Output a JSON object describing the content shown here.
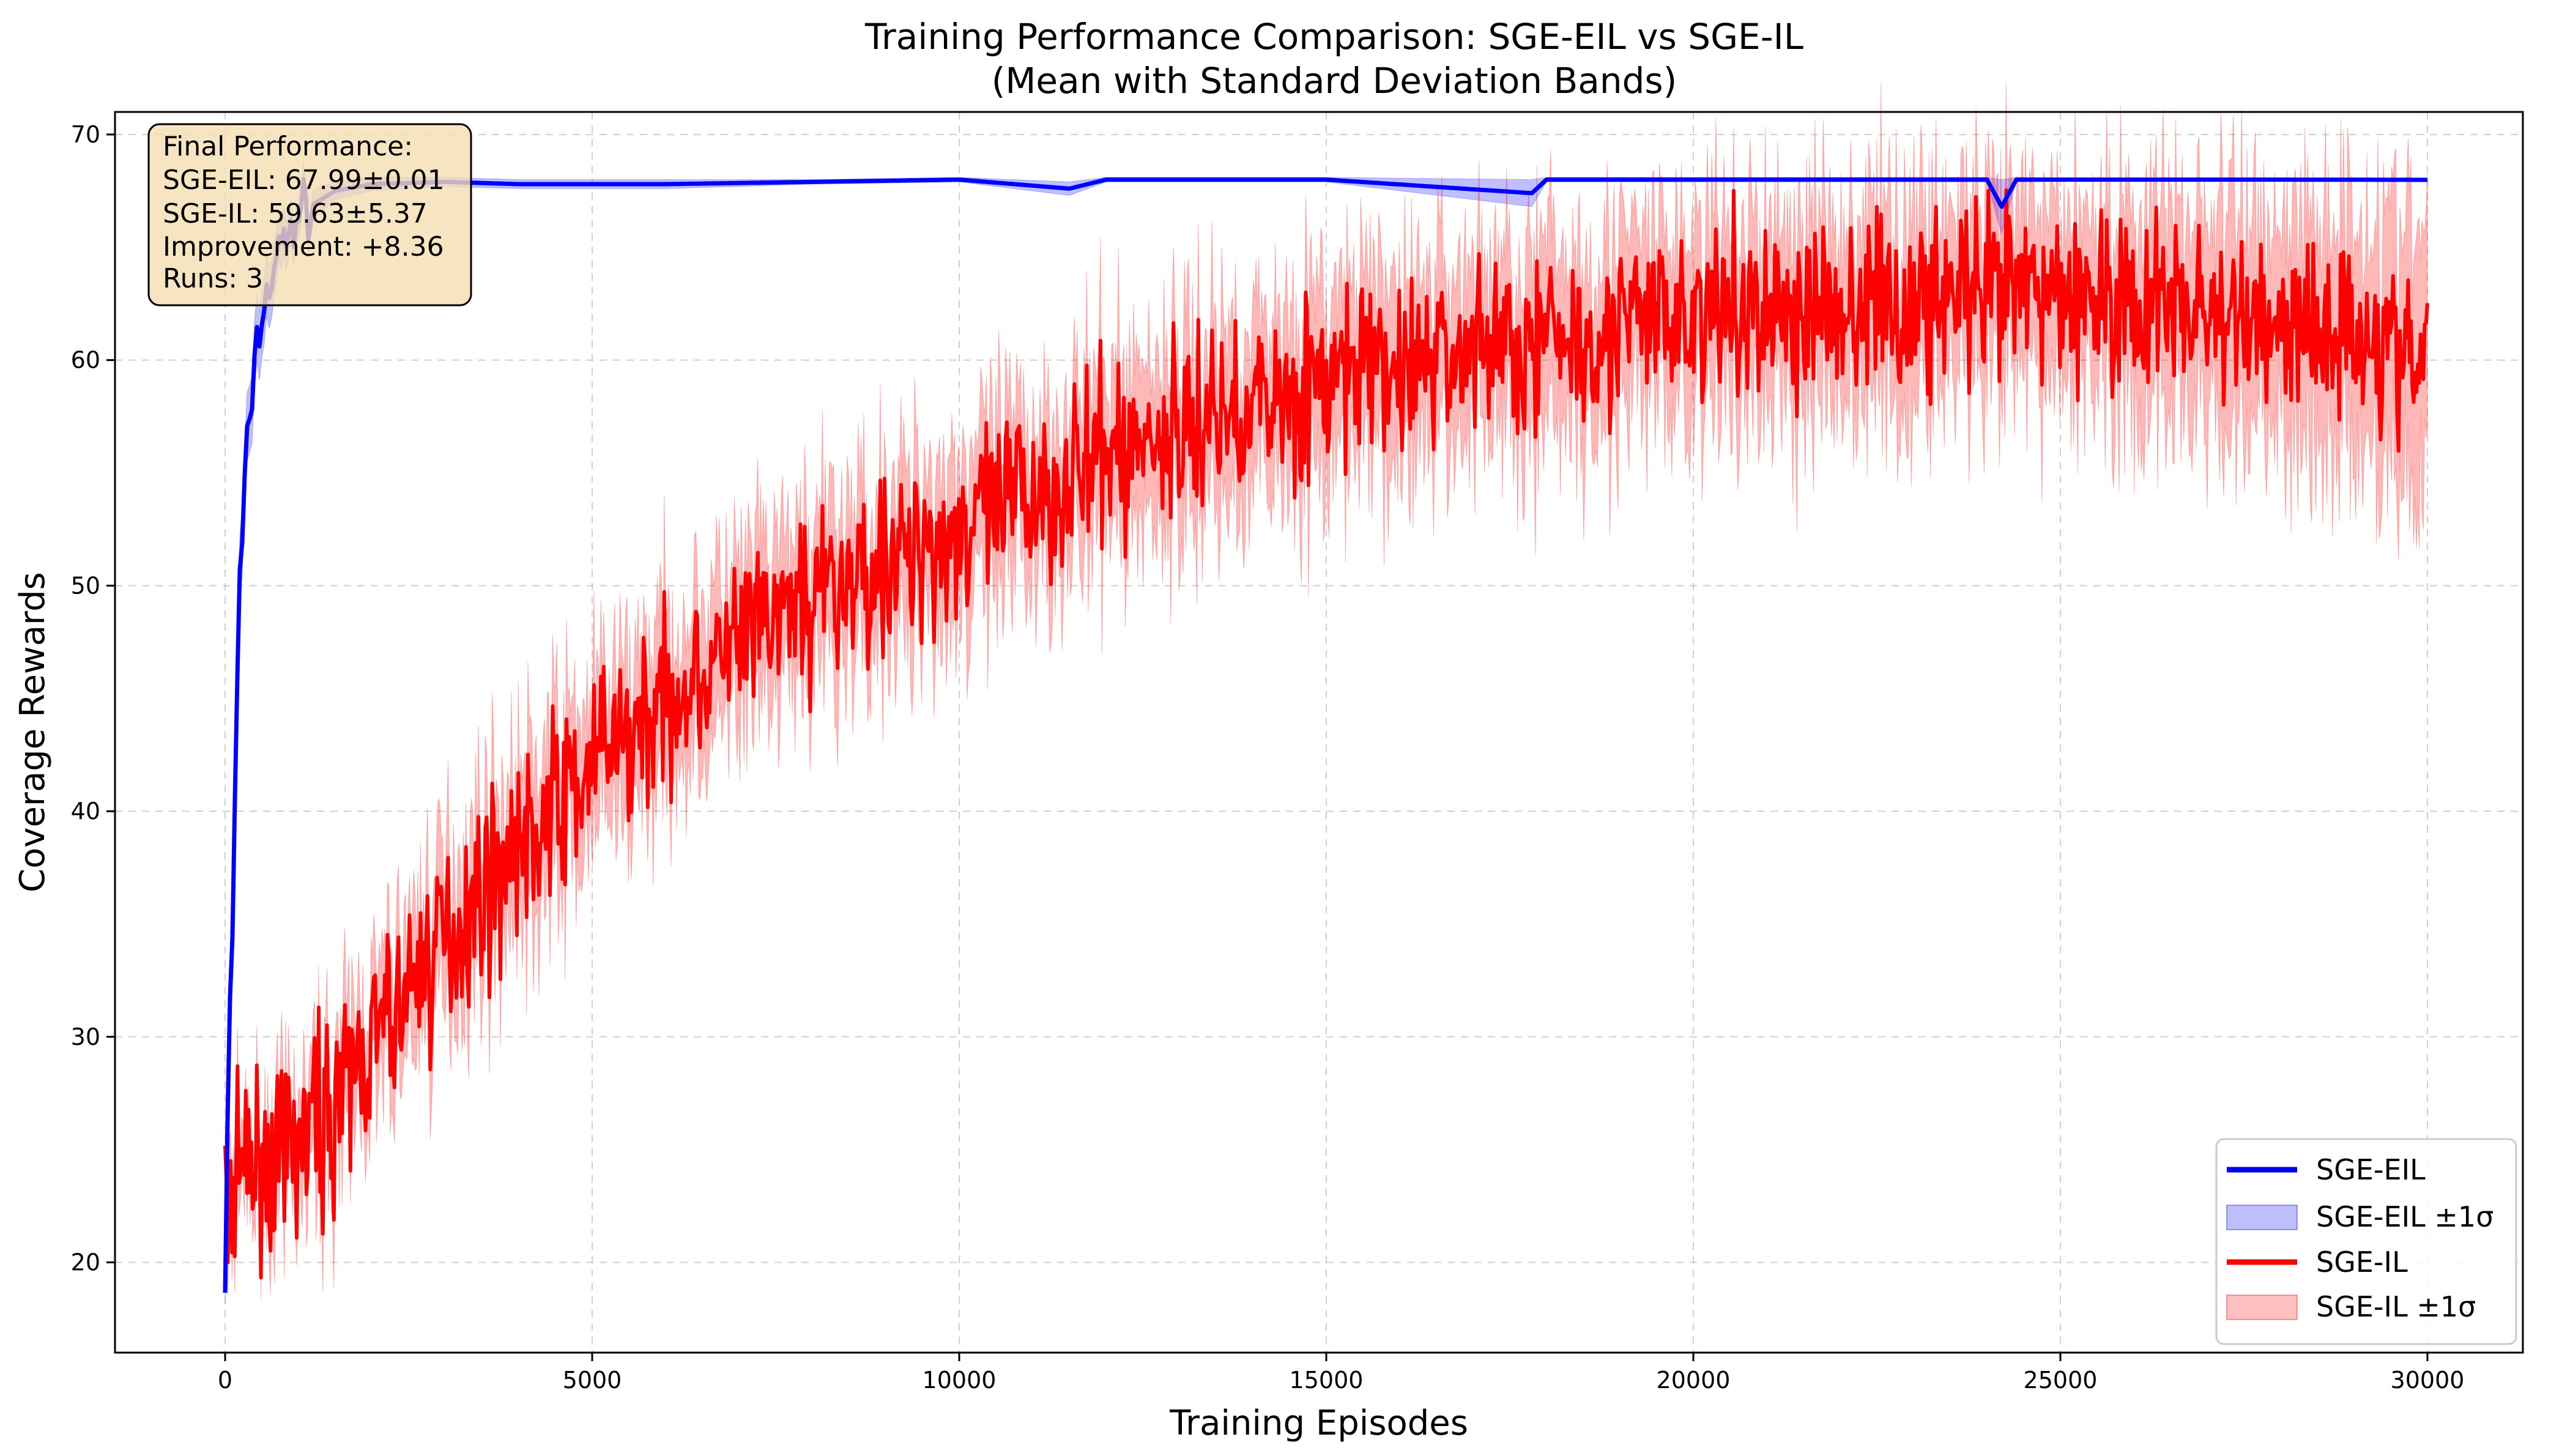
{
  "chart_data": {
    "type": "line",
    "title": "Training Performance Comparison: SGE-EIL vs SGE-IL",
    "subtitle": "(Mean with Standard Deviation Bands)",
    "xlabel": "Training Episodes",
    "ylabel": "Coverage Rewards",
    "xlim": [
      -1500,
      31300
    ],
    "ylim": [
      16,
      71
    ],
    "xticks": [
      0,
      5000,
      10000,
      15000,
      20000,
      25000,
      30000
    ],
    "xtick_labels": [
      "0",
      "5000",
      "10000",
      "15000",
      "20000",
      "25000",
      "30000"
    ],
    "yticks": [
      20,
      30,
      40,
      50,
      60,
      70
    ],
    "ytick_labels": [
      "20",
      "30",
      "40",
      "50",
      "60",
      "70"
    ],
    "grid": true,
    "legend_position": "bottom-right",
    "series": [
      {
        "name": "SGE-EIL",
        "color": "#0000ff",
        "band_label": "SGE-EIL ±1σ",
        "band_color": "#0000ff",
        "x": [
          0,
          50,
          100,
          150,
          200,
          300,
          400,
          500,
          700,
          1000,
          1500,
          2000,
          3000,
          4000,
          5000,
          6000,
          8000,
          10000,
          11500,
          12000,
          15000,
          17800,
          18000,
          20000,
          24000,
          24200,
          24400,
          26000,
          28000,
          30000
        ],
        "y": [
          19.0,
          30.0,
          34.0,
          44.0,
          50.0,
          56.0,
          60.0,
          62.0,
          64.5,
          66.5,
          67.5,
          67.8,
          67.9,
          67.8,
          67.8,
          67.8,
          67.9,
          68.0,
          67.6,
          68.0,
          68.0,
          67.4,
          68.0,
          68.0,
          68.0,
          66.8,
          68.0,
          68.0,
          68.0,
          67.99
        ],
        "std": [
          0.5,
          1.0,
          1.2,
          1.5,
          1.5,
          1.5,
          1.5,
          1.5,
          1.2,
          0.8,
          0.4,
          0.3,
          0.2,
          0.2,
          0.2,
          0.2,
          0.1,
          0.1,
          0.3,
          0.1,
          0.1,
          0.6,
          0.1,
          0.1,
          0.1,
          1.2,
          0.1,
          0.05,
          0.05,
          0.01
        ]
      },
      {
        "name": "SGE-IL",
        "color": "#ff0000",
        "band_label": "SGE-IL ±1σ",
        "band_color": "#ff0000",
        "x": [
          0,
          1000,
          2000,
          3000,
          4000,
          5000,
          6000,
          7000,
          8000,
          9000,
          10000,
          11000,
          12000,
          13000,
          14000,
          15000,
          16000,
          17000,
          18000,
          19000,
          20000,
          21000,
          22000,
          23000,
          24000,
          25000,
          26000,
          27000,
          28000,
          29000,
          30000
        ],
        "y": [
          23.5,
          25.0,
          29.5,
          34.5,
          38.5,
          42.0,
          45.0,
          47.5,
          49.5,
          51.0,
          52.5,
          54.0,
          55.5,
          57.0,
          58.0,
          59.0,
          59.8,
          60.5,
          61.0,
          61.5,
          62.0,
          62.2,
          62.3,
          62.4,
          62.8,
          63.0,
          62.5,
          62.0,
          61.5,
          61.5,
          59.63
        ],
        "std": [
          1.0,
          2.0,
          2.5,
          3.0,
          3.0,
          3.0,
          3.0,
          3.0,
          3.0,
          3.2,
          3.2,
          3.2,
          3.5,
          3.5,
          3.5,
          3.5,
          3.5,
          3.5,
          3.5,
          3.5,
          3.5,
          3.5,
          3.8,
          4.0,
          3.5,
          3.5,
          4.0,
          4.5,
          4.5,
          5.0,
          5.37
        ],
        "noise": 2.0
      }
    ],
    "annotation": {
      "lines": [
        "Final Performance:",
        "SGE-EIL: 67.99±0.01",
        "SGE-IL: 59.63±5.37",
        "Improvement: +8.36",
        "Runs: 3"
      ],
      "background": "#f5deb3",
      "position": "top-left"
    }
  }
}
